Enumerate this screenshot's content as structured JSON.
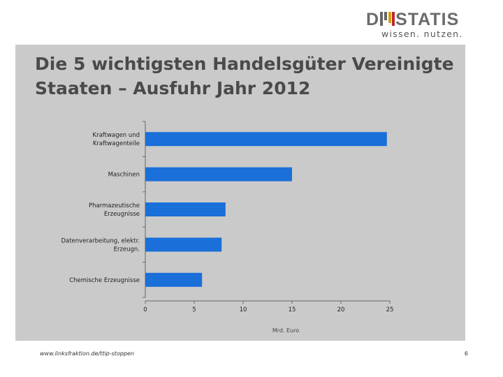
{
  "logo": {
    "main_left": "D",
    "main_right": "STATIS",
    "tagline": "wissen. nutzen."
  },
  "title": {
    "line1": "Die 5 wichtigsten Handelsgüter Vereinigte",
    "line2": "Staaten – Ausfuhr  Jahr 2012"
  },
  "chart_data": {
    "type": "bar",
    "orientation": "horizontal",
    "categories": [
      [
        "Kraftwagen und",
        "Kraftwagenteile"
      ],
      [
        "Maschinen"
      ],
      [
        "Pharmazeutische",
        "Erzeugnisse"
      ],
      [
        "Datenverarbeitung, elektr.",
        "Erzeugn."
      ],
      [
        "Chemische Erzeugnisse"
      ]
    ],
    "values": [
      24.7,
      15.0,
      8.2,
      7.8,
      5.8
    ],
    "xlim": [
      0,
      25
    ],
    "xticks": [
      0,
      5,
      10,
      15,
      20,
      25
    ],
    "xlabel": "Mrd. Euro",
    "bar_color": "#1a6fd9"
  },
  "footer": {
    "url": "www.linksfraktion.de/ttip-stoppen",
    "page": "6"
  }
}
